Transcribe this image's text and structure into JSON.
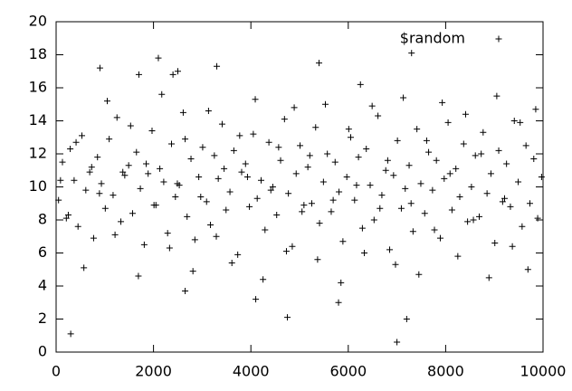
{
  "chart_data": {
    "type": "scatter",
    "x": [
      50,
      130,
      210,
      290,
      370,
      450,
      530,
      610,
      690,
      770,
      850,
      930,
      1010,
      1090,
      1170,
      1250,
      1330,
      1410,
      1490,
      1570,
      1650,
      1730,
      1810,
      1890,
      1970,
      2050,
      2130,
      2210,
      2290,
      2370,
      2450,
      2530,
      2610,
      2690,
      2770,
      2850,
      2930,
      3010,
      3090,
      3170,
      3250,
      3330,
      3410,
      3490,
      3570,
      3650,
      3730,
      3810,
      3890,
      3970,
      4050,
      4130,
      4210,
      4290,
      4370,
      4450,
      4530,
      4610,
      4690,
      4770,
      4850,
      4930,
      5010,
      5090,
      5170,
      5250,
      5330,
      5410,
      5490,
      5570,
      5650,
      5730,
      5810,
      5890,
      5970,
      6050,
      6130,
      6210,
      6290,
      6370,
      6450,
      6530,
      6610,
      6690,
      6770,
      6850,
      6930,
      7010,
      7090,
      7170,
      7250,
      7330,
      7410,
      7490,
      7570,
      7650,
      7730,
      7810,
      7890,
      7970,
      8050,
      8130,
      8210,
      8290,
      8370,
      8450,
      8530,
      8610,
      8690,
      8770,
      8850,
      8930,
      9010,
      9090,
      9170,
      9250,
      9330,
      9410,
      9490,
      9570,
      9650,
      9730,
      9810,
      9890,
      9970,
      90,
      250,
      410,
      570,
      730,
      890,
      1050,
      1210,
      1370,
      1530,
      1690,
      1850,
      2010,
      2170,
      2330,
      2490,
      2650,
      2810,
      2970,
      3130,
      3290,
      3450,
      3610,
      3770,
      3930,
      4090,
      4250,
      4410,
      4570,
      4730,
      4890,
      5050,
      5210,
      5370,
      5530,
      5690,
      5850,
      6010,
      6170,
      6330,
      6490,
      6650,
      6810,
      6970,
      7130,
      7290,
      7450,
      7610,
      7770,
      7930,
      8090,
      8250,
      8410,
      8570,
      8730,
      8890,
      9050,
      9210,
      9370,
      9530,
      9690,
      9850,
      300,
      7000,
      7200,
      4750,
      2100,
      2400,
      2500,
      3300,
      5400,
      7300,
      900,
      1700,
      4100,
      5800,
      2650,
      6250
    ],
    "series": [
      {
        "name": "$random",
        "color": "#000000",
        "values": [
          9.2,
          11.5,
          8.1,
          12.3,
          10.4,
          7.6,
          13.1,
          9.8,
          10.9,
          6.9,
          11.8,
          10.2,
          8.7,
          12.9,
          9.5,
          14.2,
          7.9,
          10.7,
          11.3,
          8.4,
          12.1,
          9.9,
          6.5,
          10.8,
          13.4,
          8.9,
          11.1,
          10.3,
          7.2,
          12.6,
          9.4,
          10.1,
          14.5,
          8.2,
          11.7,
          6.8,
          10.6,
          12.4,
          9.1,
          7.7,
          11.9,
          10.5,
          13.8,
          8.6,
          9.7,
          12.2,
          5.9,
          10.9,
          11.4,
          8.8,
          13.2,
          9.3,
          10.4,
          7.4,
          12.7,
          10.0,
          8.3,
          11.6,
          14.1,
          9.6,
          6.4,
          10.8,
          12.5,
          8.9,
          11.2,
          9.0,
          13.6,
          7.8,
          10.3,
          12.0,
          8.5,
          11.5,
          9.7,
          6.7,
          10.6,
          13.0,
          9.2,
          11.8,
          7.5,
          12.3,
          10.1,
          8.0,
          14.3,
          9.5,
          11.0,
          6.2,
          10.7,
          12.8,
          8.7,
          9.9,
          11.3,
          7.3,
          13.5,
          10.2,
          8.4,
          12.1,
          9.8,
          11.6,
          6.9,
          10.5,
          13.9,
          8.6,
          11.1,
          9.4,
          12.6,
          7.9,
          10.0,
          11.9,
          8.2,
          13.3,
          9.6,
          10.8,
          6.6,
          12.2,
          9.1,
          11.4,
          8.8,
          14.0,
          10.3,
          7.6,
          12.5,
          9.0,
          11.7,
          8.1,
          10.6,
          10.4,
          8.3,
          12.7,
          5.1,
          11.2,
          9.6,
          15.2,
          7.1,
          10.9,
          13.7,
          4.6,
          11.4,
          8.9,
          15.6,
          6.3,
          10.2,
          12.9,
          4.9,
          9.4,
          14.6,
          7.0,
          11.1,
          5.4,
          13.1,
          10.6,
          15.3,
          4.4,
          9.8,
          12.4,
          6.1,
          14.8,
          8.5,
          11.9,
          5.6,
          15.0,
          9.2,
          4.2,
          13.5,
          10.1,
          6.0,
          14.9,
          8.7,
          11.6,
          5.3,
          15.4,
          9.0,
          4.7,
          12.8,
          7.4,
          15.1,
          10.8,
          5.8,
          14.4,
          8.0,
          12.0,
          4.5,
          15.5,
          9.3,
          6.4,
          13.9,
          5.0,
          14.7,
          1.1,
          0.6,
          2.0,
          2.1,
          17.8,
          16.8,
          17.0,
          17.3,
          17.5,
          18.1,
          17.2,
          16.8,
          3.2,
          3.0,
          3.7,
          16.2
        ]
      }
    ],
    "xlim": [
      0,
      10000
    ],
    "xticks": [
      0,
      2000,
      4000,
      6000,
      8000,
      10000
    ],
    "ylim": [
      0,
      20
    ],
    "yticks": [
      0,
      2,
      4,
      6,
      8,
      10,
      12,
      14,
      16,
      18,
      20
    ],
    "legend": "top-right"
  }
}
